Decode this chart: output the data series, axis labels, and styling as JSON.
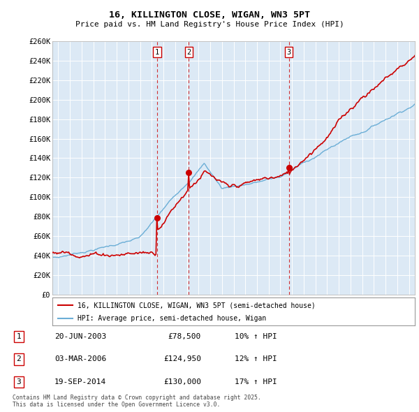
{
  "title": "16, KILLINGTON CLOSE, WIGAN, WN3 5PT",
  "subtitle": "Price paid vs. HM Land Registry's House Price Index (HPI)",
  "ylim": [
    0,
    260000
  ],
  "yticks": [
    0,
    20000,
    40000,
    60000,
    80000,
    100000,
    120000,
    140000,
    160000,
    180000,
    200000,
    220000,
    240000,
    260000
  ],
  "xlim_start": 1994.5,
  "xlim_end": 2025.5,
  "bg_color": "#dce9f5",
  "grid_color": "#ffffff",
  "hpi_color": "#6baed6",
  "price_color": "#cc0000",
  "transactions": [
    {
      "num": 1,
      "date": "20-JUN-2003",
      "price": 78500,
      "pct": "10%",
      "dir": "↑",
      "year": 2003.46,
      "price_val": 78500
    },
    {
      "num": 2,
      "date": "03-MAR-2006",
      "price": 124950,
      "pct": "12%",
      "dir": "↑",
      "year": 2006.17,
      "price_val": 124950
    },
    {
      "num": 3,
      "date": "19-SEP-2014",
      "price": 130000,
      "pct": "17%",
      "dir": "↑",
      "year": 2014.72,
      "price_val": 130000
    }
  ],
  "legend_label_price": "16, KILLINGTON CLOSE, WIGAN, WN3 5PT (semi-detached house)",
  "legend_label_hpi": "HPI: Average price, semi-detached house, Wigan",
  "footnote": "Contains HM Land Registry data © Crown copyright and database right 2025.\nThis data is licensed under the Open Government Licence v3.0."
}
